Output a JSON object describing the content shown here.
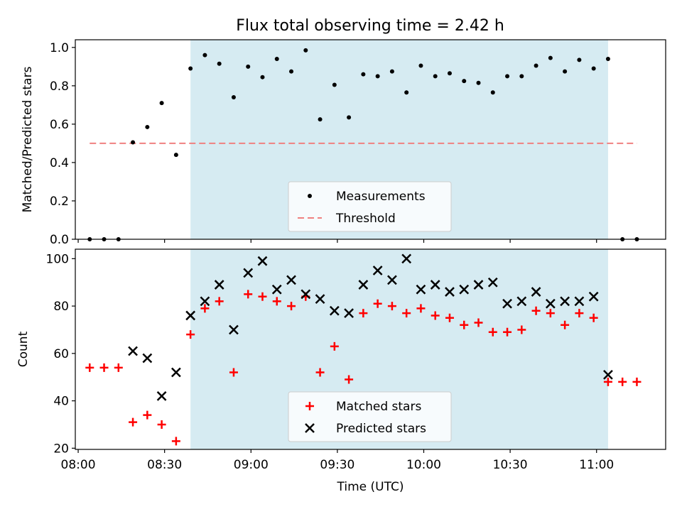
{
  "title": "Flux total observing time = 2.42 h",
  "chart_data": [
    {
      "type": "scatter",
      "ylabel": "Matched/Predicted stars",
      "ylim": [
        0,
        1.04
      ],
      "yticks": [
        "0.0",
        "0.2",
        "0.4",
        "0.6",
        "0.8",
        "1.0"
      ],
      "x_range": [
        "07:59",
        "11:24"
      ],
      "shaded_region": {
        "start": "08:39",
        "end": "11:04",
        "color": "#add8e6"
      },
      "threshold": {
        "name": "Threshold",
        "value": 0.5,
        "x_start": "08:04",
        "x_end": "11:14",
        "color": "#f08080"
      },
      "series": [
        {
          "name": "Measurements",
          "color": "#000000",
          "x": [
            "08:04",
            "08:09",
            "08:14",
            "08:19",
            "08:24",
            "08:29",
            "08:34",
            "08:39",
            "08:44",
            "08:49",
            "08:54",
            "08:59",
            "09:04",
            "09:09",
            "09:14",
            "09:19",
            "09:24",
            "09:29",
            "09:34",
            "09:39",
            "09:44",
            "09:49",
            "09:54",
            "09:59",
            "10:04",
            "10:09",
            "10:14",
            "10:19",
            "10:24",
            "10:29",
            "10:34",
            "10:39",
            "10:44",
            "10:49",
            "10:54",
            "10:59",
            "11:04",
            "11:09",
            "11:14"
          ],
          "y": [
            0,
            0,
            0,
            0.505,
            0.585,
            0.71,
            0.44,
            0.89,
            0.96,
            0.915,
            0.74,
            0.9,
            0.845,
            0.94,
            0.875,
            0.985,
            0.625,
            0.805,
            0.635,
            0.86,
            0.85,
            0.875,
            0.765,
            0.905,
            0.85,
            0.865,
            0.825,
            0.815,
            0.765,
            0.85,
            0.85,
            0.905,
            0.945,
            0.875,
            0.935,
            0.89,
            0.94,
            0,
            0
          ]
        }
      ],
      "legend": {
        "position": "lower-center",
        "entries": [
          "Measurements",
          "Threshold"
        ]
      }
    },
    {
      "type": "scatter",
      "xlabel": "Time (UTC)",
      "ylabel": "Count",
      "ylim": [
        19.5,
        104
      ],
      "yticks": [
        "20",
        "40",
        "60",
        "80",
        "100"
      ],
      "xticks": [
        "08:00",
        "08:30",
        "09:00",
        "09:30",
        "10:00",
        "10:30",
        "11:00"
      ],
      "x_range": [
        "07:59",
        "11:24"
      ],
      "shaded_region": {
        "start": "08:39",
        "end": "11:04",
        "color": "#add8e6"
      },
      "series": [
        {
          "name": "Matched stars",
          "marker": "+",
          "color": "#ff0000",
          "x": [
            "08:04",
            "08:09",
            "08:14",
            "08:19",
            "08:24",
            "08:29",
            "08:34",
            "08:39",
            "08:44",
            "08:49",
            "08:54",
            "08:59",
            "09:04",
            "09:09",
            "09:14",
            "09:19",
            "09:24",
            "09:29",
            "09:34",
            "09:39",
            "09:44",
            "09:49",
            "09:54",
            "09:59",
            "10:04",
            "10:09",
            "10:14",
            "10:19",
            "10:24",
            "10:29",
            "10:34",
            "10:39",
            "10:44",
            "10:49",
            "10:54",
            "10:59",
            "11:04",
            "11:09",
            "11:14"
          ],
          "y": [
            54,
            54,
            54,
            31,
            34,
            30,
            23,
            68,
            79,
            82,
            52,
            85,
            84,
            82,
            80,
            84,
            52,
            63,
            49,
            77,
            81,
            80,
            77,
            79,
            76,
            75,
            72,
            73,
            69,
            69,
            70,
            78,
            77,
            72,
            77,
            75,
            48,
            48,
            48
          ]
        },
        {
          "name": "Predicted stars",
          "marker": "x",
          "color": "#000000",
          "x": [
            "08:19",
            "08:24",
            "08:29",
            "08:34",
            "08:39",
            "08:44",
            "08:49",
            "08:54",
            "08:59",
            "09:04",
            "09:09",
            "09:14",
            "09:19",
            "09:24",
            "09:29",
            "09:34",
            "09:39",
            "09:44",
            "09:49",
            "09:54",
            "09:59",
            "10:04",
            "10:09",
            "10:14",
            "10:19",
            "10:24",
            "10:29",
            "10:34",
            "10:39",
            "10:44",
            "10:49",
            "10:54",
            "10:59",
            "11:04"
          ],
          "y": [
            61,
            58,
            42,
            52,
            76,
            82,
            89,
            70,
            94,
            99,
            87,
            91,
            85,
            83,
            78,
            77,
            89,
            95,
            91,
            100,
            87,
            89,
            86,
            87,
            89,
            90,
            81,
            82,
            86,
            81,
            82,
            82,
            84,
            51
          ]
        }
      ],
      "legend": {
        "position": "lower-center",
        "entries": [
          "Matched stars",
          "Predicted stars"
        ]
      }
    }
  ]
}
